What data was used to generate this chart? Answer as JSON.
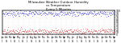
{
  "title": "Milwaukee Weather Outdoor Humidity\nvs Temperature\nEvery 5 Minutes",
  "title_fontsize": 2.8,
  "bg_color": "#ffffff",
  "blue_color": "#0000cc",
  "red_color": "#cc0000",
  "dot_size": 0.15,
  "ylim": [
    0,
    100
  ],
  "n_points": 300,
  "humidity_base": 88,
  "humidity_noise": 6,
  "temp_base": 12,
  "temp_noise": 6,
  "ylabel_fontsize": 2.2,
  "xlabel_fontsize": 1.8,
  "grid_color": "#bbbbbb",
  "n_xticks": 28,
  "yticks": [
    0,
    10,
    20,
    30,
    40,
    50,
    60,
    70,
    80,
    90,
    100
  ]
}
